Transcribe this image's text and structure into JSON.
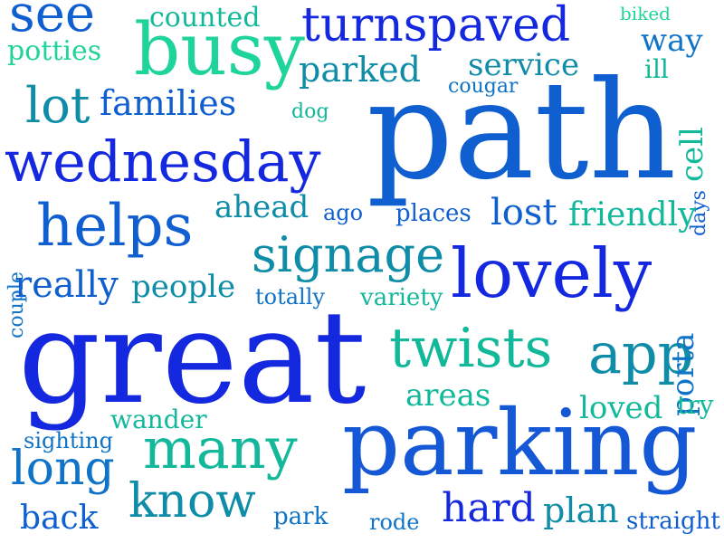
{
  "palette": {
    "blue": "#1428e0",
    "mid_blue": "#0f5fd0",
    "teal": "#0f8ca8",
    "green_teal": "#12b89a",
    "mint": "#1fd49a"
  },
  "words": [
    "path",
    "great",
    "parking",
    "busy",
    "wednesday",
    "lovely",
    "turnspaved",
    "helps",
    "twists",
    "app",
    "many",
    "signage",
    "know",
    "long",
    "see",
    "lot",
    "families",
    "parked",
    "service",
    "counted",
    "potties",
    "biked",
    "way",
    "ill",
    "cougar",
    "cell",
    "dog",
    "days",
    "ahead",
    "ago",
    "places",
    "lost",
    "friendly",
    "couple",
    "really",
    "people",
    "totally",
    "variety",
    "porta",
    "areas",
    "loved",
    "try",
    "wander",
    "sighting",
    "hard",
    "plan",
    "back",
    "park",
    "rode",
    "straight"
  ]
}
